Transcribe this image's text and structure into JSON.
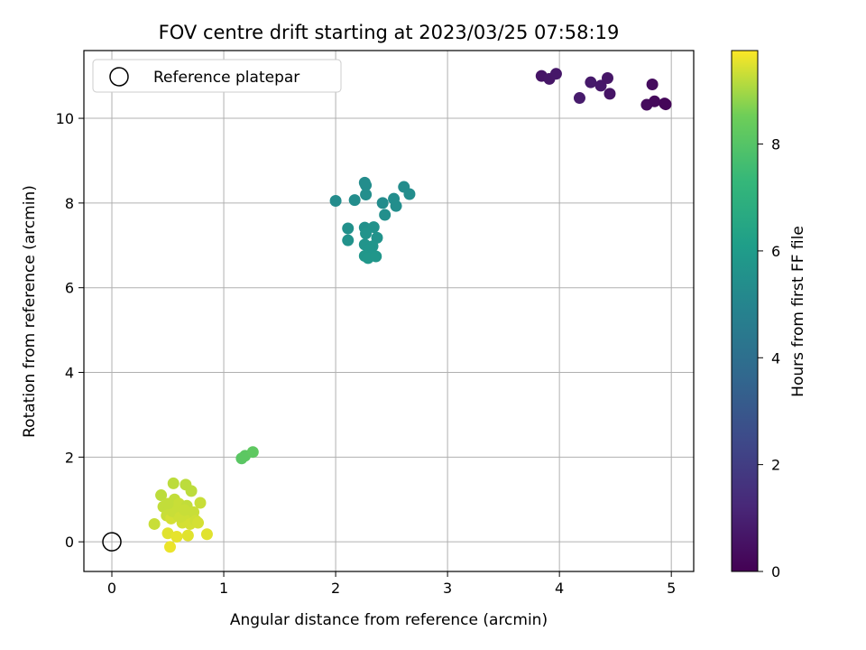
{
  "chart_data": {
    "type": "scatter",
    "title": "FOV centre drift starting at 2023/03/25 07:58:19",
    "xlabel": "Angular distance from reference (arcmin)",
    "ylabel": "Rotation from reference (arcmin)",
    "xlim": [
      -0.25,
      5.2
    ],
    "ylim": [
      -0.7,
      11.6
    ],
    "xticks": [
      0,
      1,
      2,
      3,
      4,
      5
    ],
    "xtick_labels": [
      "0",
      "1",
      "2",
      "3",
      "4",
      "5"
    ],
    "yticks": [
      0,
      2,
      4,
      6,
      8,
      10
    ],
    "ytick_labels": [
      "0",
      "2",
      "4",
      "6",
      "8",
      "10"
    ],
    "grid": true,
    "legend": {
      "placement": "upper-left",
      "entries": [
        "Reference platepar"
      ]
    },
    "reference_point": {
      "x": 0,
      "y": 0
    },
    "colorbar": {
      "label": "Hours from first FF file",
      "min": 0,
      "max": 9.75,
      "ticks": [
        0,
        2,
        4,
        6,
        8
      ],
      "tick_labels": [
        "0",
        "2",
        "4",
        "6",
        "8"
      ],
      "colormap": "viridis"
    },
    "series": [
      {
        "points": [
          {
            "x": 3.84,
            "y": 11.0,
            "c": 0.6
          },
          {
            "x": 3.91,
            "y": 10.93,
            "c": 0.65
          },
          {
            "x": 3.97,
            "y": 11.05,
            "c": 0.7
          },
          {
            "x": 4.18,
            "y": 10.48,
            "c": 0.8
          },
          {
            "x": 4.28,
            "y": 10.85,
            "c": 0.75
          },
          {
            "x": 4.37,
            "y": 10.77,
            "c": 0.7
          },
          {
            "x": 4.43,
            "y": 10.95,
            "c": 0.65
          },
          {
            "x": 4.45,
            "y": 10.58,
            "c": 0.6
          },
          {
            "x": 4.78,
            "y": 10.32,
            "c": 0.3
          },
          {
            "x": 4.83,
            "y": 10.8,
            "c": 0.35
          },
          {
            "x": 4.85,
            "y": 10.4,
            "c": 0.25
          },
          {
            "x": 4.94,
            "y": 10.35,
            "c": 0.2
          },
          {
            "x": 4.95,
            "y": 10.33,
            "c": 0.15
          },
          {
            "x": 2.0,
            "y": 8.05,
            "c": 5.3
          },
          {
            "x": 2.17,
            "y": 8.07,
            "c": 5.35
          },
          {
            "x": 2.26,
            "y": 8.48,
            "c": 5.3
          },
          {
            "x": 2.27,
            "y": 8.42,
            "c": 5.35
          },
          {
            "x": 2.27,
            "y": 8.2,
            "c": 5.4
          },
          {
            "x": 2.42,
            "y": 8.0,
            "c": 5.3
          },
          {
            "x": 2.52,
            "y": 8.1,
            "c": 5.35
          },
          {
            "x": 2.54,
            "y": 7.93,
            "c": 5.4
          },
          {
            "x": 2.61,
            "y": 8.38,
            "c": 5.3
          },
          {
            "x": 2.66,
            "y": 8.21,
            "c": 5.35
          },
          {
            "x": 2.44,
            "y": 7.72,
            "c": 5.45
          },
          {
            "x": 2.11,
            "y": 7.4,
            "c": 5.5
          },
          {
            "x": 2.11,
            "y": 7.12,
            "c": 5.55
          },
          {
            "x": 2.26,
            "y": 7.42,
            "c": 5.5
          },
          {
            "x": 2.34,
            "y": 7.43,
            "c": 5.55
          },
          {
            "x": 2.27,
            "y": 7.28,
            "c": 5.6
          },
          {
            "x": 2.37,
            "y": 7.18,
            "c": 5.6
          },
          {
            "x": 2.26,
            "y": 7.02,
            "c": 5.65
          },
          {
            "x": 2.33,
            "y": 6.98,
            "c": 5.7
          },
          {
            "x": 2.3,
            "y": 6.9,
            "c": 5.7
          },
          {
            "x": 2.26,
            "y": 6.75,
            "c": 5.75
          },
          {
            "x": 2.29,
            "y": 6.7,
            "c": 5.8
          },
          {
            "x": 2.36,
            "y": 6.74,
            "c": 5.75
          },
          {
            "x": 1.16,
            "y": 1.97,
            "c": 8.1
          },
          {
            "x": 1.19,
            "y": 2.03,
            "c": 8.15
          },
          {
            "x": 1.26,
            "y": 2.12,
            "c": 8.2
          },
          {
            "x": 0.38,
            "y": 0.42,
            "c": 9.3
          },
          {
            "x": 0.44,
            "y": 1.1,
            "c": 9.2
          },
          {
            "x": 0.46,
            "y": 0.83,
            "c": 9.25
          },
          {
            "x": 0.49,
            "y": 0.62,
            "c": 9.3
          },
          {
            "x": 0.5,
            "y": 0.2,
            "c": 9.5
          },
          {
            "x": 0.52,
            "y": -0.12,
            "c": 9.6
          },
          {
            "x": 0.53,
            "y": 0.55,
            "c": 9.4
          },
          {
            "x": 0.55,
            "y": 1.38,
            "c": 9.2
          },
          {
            "x": 0.56,
            "y": 1.0,
            "c": 9.25
          },
          {
            "x": 0.57,
            "y": 0.78,
            "c": 9.3
          },
          {
            "x": 0.58,
            "y": 0.12,
            "c": 9.55
          },
          {
            "x": 0.59,
            "y": 0.63,
            "c": 9.35
          },
          {
            "x": 0.6,
            "y": 0.9,
            "c": 9.3
          },
          {
            "x": 0.62,
            "y": 0.7,
            "c": 9.3
          },
          {
            "x": 0.63,
            "y": 0.45,
            "c": 9.4
          },
          {
            "x": 0.66,
            "y": 1.35,
            "c": 9.2
          },
          {
            "x": 0.67,
            "y": 0.85,
            "c": 9.25
          },
          {
            "x": 0.68,
            "y": 0.15,
            "c": 9.5
          },
          {
            "x": 0.69,
            "y": 0.6,
            "c": 9.35
          },
          {
            "x": 0.7,
            "y": 0.42,
            "c": 9.4
          },
          {
            "x": 0.71,
            "y": 1.2,
            "c": 9.2
          },
          {
            "x": 0.73,
            "y": 0.7,
            "c": 9.3
          },
          {
            "x": 0.75,
            "y": 0.5,
            "c": 9.35
          },
          {
            "x": 0.77,
            "y": 0.45,
            "c": 9.4
          },
          {
            "x": 0.79,
            "y": 0.92,
            "c": 9.3
          },
          {
            "x": 0.85,
            "y": 0.18,
            "c": 9.5
          },
          {
            "x": 0.54,
            "y": 0.72,
            "c": 9.3
          },
          {
            "x": 0.61,
            "y": 0.58,
            "c": 9.35
          },
          {
            "x": 0.5,
            "y": 0.9,
            "c": 9.25
          },
          {
            "x": 0.65,
            "y": 0.75,
            "c": 9.3
          }
        ]
      }
    ]
  }
}
